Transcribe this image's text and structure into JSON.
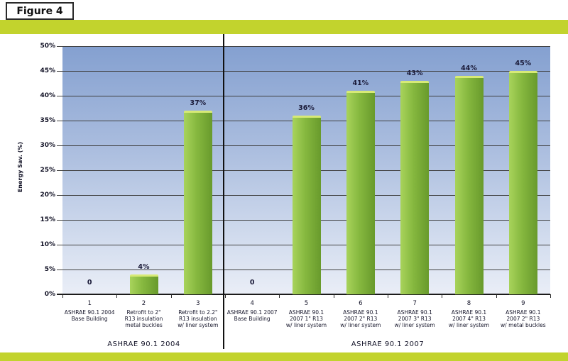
{
  "figure_label": "Figure 4",
  "colors": {
    "band_green": "#c2d32d",
    "bar_green_light": "#a8d35b",
    "bar_green": "#86b83f",
    "bar_green_dark": "#689a2c",
    "bar_top": "#d7ea76",
    "grid": "#3f3f3f"
  },
  "chart_data": {
    "type": "bar",
    "title": "",
    "xlabel": "",
    "ylabel": "Energy Sav. (%)",
    "ylim": [
      0,
      50
    ],
    "ytick_step": 5,
    "grid": true,
    "legend": "none",
    "categories": [
      {
        "num": "1",
        "lines": [
          "ASHRAE 90.1 2004",
          "Base Building"
        ]
      },
      {
        "num": "2",
        "lines": [
          "Retrofit to 2\"",
          "R13 insulation",
          "metal buckles"
        ]
      },
      {
        "num": "3",
        "lines": [
          "Retrofit to 2.2\"",
          "R13 insulation",
          "w/ liner system"
        ]
      },
      {
        "num": "4",
        "lines": [
          "ASHRAE 90.1 2007",
          "Base Building"
        ]
      },
      {
        "num": "5",
        "lines": [
          "ASHRAE 90.1",
          "2007 1\" R13",
          "w/ liner system"
        ]
      },
      {
        "num": "6",
        "lines": [
          "ASHRAE 90.1",
          "2007 2\" R13",
          "w/ liner system"
        ]
      },
      {
        "num": "7",
        "lines": [
          "ASHRAE 90.1",
          "2007 3\" R13",
          "w/ liner system"
        ]
      },
      {
        "num": "8",
        "lines": [
          "ASHRAE 90.1",
          "2007 4\" R13",
          "w/ liner system"
        ]
      },
      {
        "num": "9",
        "lines": [
          "ASHRAE 90.1",
          "2007 2\" R13",
          "w/ metal buckles"
        ]
      }
    ],
    "values": [
      0,
      4,
      37,
      0,
      36,
      41,
      43,
      44,
      45
    ],
    "value_labels": [
      "0",
      "4%",
      "37%",
      "0",
      "36%",
      "41%",
      "43%",
      "44%",
      "45%"
    ],
    "sections": [
      {
        "label": "ASHRAE 90.1 2004",
        "span": [
          0,
          3
        ]
      },
      {
        "label": "ASHRAE 90.1 2007",
        "span": [
          3,
          9
        ]
      }
    ]
  }
}
